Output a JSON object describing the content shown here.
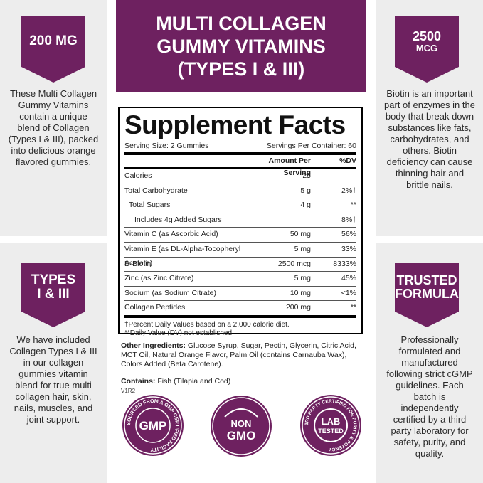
{
  "header": {
    "line1": "MULTI COLLAGEN",
    "line2": "GUMMY VITAMINS",
    "line3": "(TYPES I & III)"
  },
  "left_top": {
    "badge": "200 MG",
    "text": "These Multi Collagen Gummy Vitamins contain a unique blend of Collagen (Types I & III), packed into delicious orange flavored gummies."
  },
  "right_top": {
    "badge_big": "2500",
    "badge_small": "MCG",
    "text": "Biotin is an important part of enzymes in the body that break down substances like fats, carbohydrates, and others. Biotin deficiency can cause thinning hair and brittle nails."
  },
  "left_bottom": {
    "badge1": "TYPES",
    "badge2": "I & III",
    "text": "We have included Collagen Types I & III in our collagen gummies vitamin blend for true multi collagen hair, skin, nails, muscles, and joint support."
  },
  "right_bottom": {
    "badge1": "TRUSTED",
    "badge2": "FORMULA",
    "text": "Professionally formulated and manufactured following strict cGMP guidelines. Each batch is independently certified by a third party laboratory for safety, purity, and quality."
  },
  "facts": {
    "title": "Supplement Facts",
    "serving_size": "Serving Size: 2 Gummies",
    "servings_per": "Servings Per Container: 60",
    "col_amount": "Amount Per Serving",
    "col_dv": "%DV",
    "rows": [
      {
        "name": "Calories",
        "amount": "25",
        "dv": ""
      },
      {
        "name": "Total Carbohydrate",
        "amount": "5 g",
        "dv": "2%†"
      },
      {
        "name": "Total Sugars",
        "amount": "4 g",
        "dv": "**"
      },
      {
        "name": "Includes 4g Added Sugars",
        "amount": "",
        "dv": "8%†"
      },
      {
        "name": "Vitamin C (as Ascorbic Acid)",
        "amount": "50 mg",
        "dv": "56%"
      },
      {
        "name": "Vitamin E (as DL-Alpha-Tocopheryl Acetate)",
        "amount": "5 mg",
        "dv": "33%"
      },
      {
        "name": "D-Biotin",
        "amount": "2500 mcg",
        "dv": "8333%"
      },
      {
        "name": "Zinc (as Zinc Citrate)",
        "amount": "5 mg",
        "dv": "45%"
      },
      {
        "name": "Sodium (as Sodium Citrate)",
        "amount": "10 mg",
        "dv": "<1%"
      },
      {
        "name": "Collagen Peptides",
        "amount": "200 mg",
        "dv": "**"
      }
    ],
    "foot1": "†Percent Daily Values based on a 2,000 calorie diet.",
    "foot2": "**Daily Value (DV) not established"
  },
  "ingredients": {
    "label": "Other Ingredients:",
    "text": " Glucose Syrup, Sugar, Pectin, Glycerin, Citric Acid, MCT Oil, Natural Orange Flavor, Palm Oil (contains Carnauba Wax), Colors Added (Beta Carotene)."
  },
  "contains": {
    "label": "Contains:",
    "text": " Fish (Tilapia and Cod)"
  },
  "code": "V1R2",
  "seals": {
    "gmp": {
      "ring": "SOURCED FROM A GMP CERTIFIED FACILITY",
      "center": "GMP"
    },
    "nongmo": {
      "line1": "NON",
      "line2": "GMO"
    },
    "lab": {
      "ring": "3RD PARTY CERTIFIED FOR PURITY & POTENCY",
      "line1": "LAB",
      "line2": "TESTED"
    }
  },
  "colors": {
    "brand": "#6e2160",
    "panel": "#ededed"
  }
}
